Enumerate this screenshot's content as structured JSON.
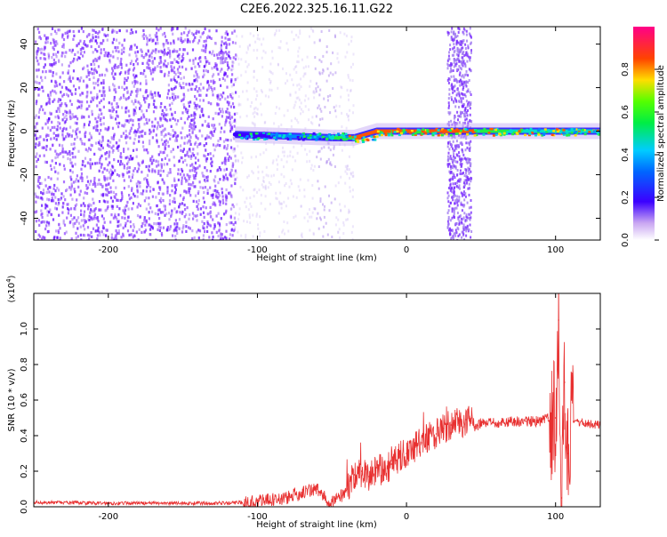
{
  "title": "C2E6.2022.325.16.11.G22",
  "chart_data": [
    {
      "type": "heatmap",
      "xlabel": "Height of straight line (km)",
      "ylabel": "Frequency (Hz)",
      "xlim": [
        -250,
        130
      ],
      "ylim": [
        -50,
        48
      ],
      "xticks": [
        -200,
        -100,
        0,
        100
      ],
      "yticks": [
        -40,
        -20,
        0,
        20,
        40
      ],
      "colorbar": {
        "label": "Normalized spectral amplitude",
        "range": [
          0.0,
          1.0
        ],
        "ticks": [
          0.0,
          0.2,
          0.4,
          0.6,
          0.8
        ]
      },
      "signal_band": [
        {
          "x": -115,
          "f": -1.5,
          "amp": 0.35
        },
        {
          "x": -90,
          "f": -2,
          "amp": 0.45
        },
        {
          "x": -70,
          "f": -2.5,
          "amp": 0.45
        },
        {
          "x": -50,
          "f": -3,
          "amp": 0.5
        },
        {
          "x": -35,
          "f": -3,
          "amp": 0.9
        },
        {
          "x": -20,
          "f": 0,
          "amp": 0.85
        },
        {
          "x": 0,
          "f": 0,
          "amp": 0.9
        },
        {
          "x": 25,
          "f": 0,
          "amp": 0.9
        },
        {
          "x": 45,
          "f": 0,
          "amp": 0.9
        },
        {
          "x": 70,
          "f": 0,
          "amp": 0.55
        },
        {
          "x": 100,
          "f": 0,
          "amp": 0.55
        },
        {
          "x": 130,
          "f": 0,
          "amp": 0.55
        }
      ]
    },
    {
      "type": "line",
      "xlabel": "Height of straight line (km)",
      "ylabel": "SNR (10 * v/v)",
      "scale_label": "(x10",
      "scale_exp": "4",
      "scale_close": ")",
      "xlim": [
        -250,
        130
      ],
      "ylim": [
        0,
        1.2
      ],
      "xticks": [
        -200,
        -100,
        0,
        100
      ],
      "yticks": [
        0.0,
        0.2,
        0.4,
        0.6,
        0.8,
        1.0
      ],
      "series": [
        {
          "color": "#e83030",
          "x": [
            -250,
            -200,
            -150,
            -120,
            -100,
            -80,
            -70,
            -60,
            -55,
            -50,
            -45,
            -40,
            -35,
            -30,
            -25,
            -20,
            -15,
            -10,
            -5,
            0,
            5,
            10,
            15,
            20,
            25,
            30,
            35,
            40,
            44,
            46,
            50,
            60,
            70,
            80,
            90,
            95,
            100,
            102,
            104,
            106,
            108,
            112,
            120,
            130
          ],
          "y": [
            0.025,
            0.02,
            0.02,
            0.02,
            0.03,
            0.05,
            0.08,
            0.1,
            0.05,
            0.03,
            0.05,
            0.1,
            0.18,
            0.2,
            0.17,
            0.22,
            0.2,
            0.24,
            0.28,
            0.3,
            0.33,
            0.36,
            0.39,
            0.41,
            0.44,
            0.46,
            0.47,
            0.49,
            0.5,
            0.44,
            0.47,
            0.47,
            0.48,
            0.48,
            0.48,
            0.5,
            0.5,
            1.05,
            0.05,
            0.7,
            0.3,
            0.48,
            0.47,
            0.46
          ]
        }
      ]
    }
  ]
}
